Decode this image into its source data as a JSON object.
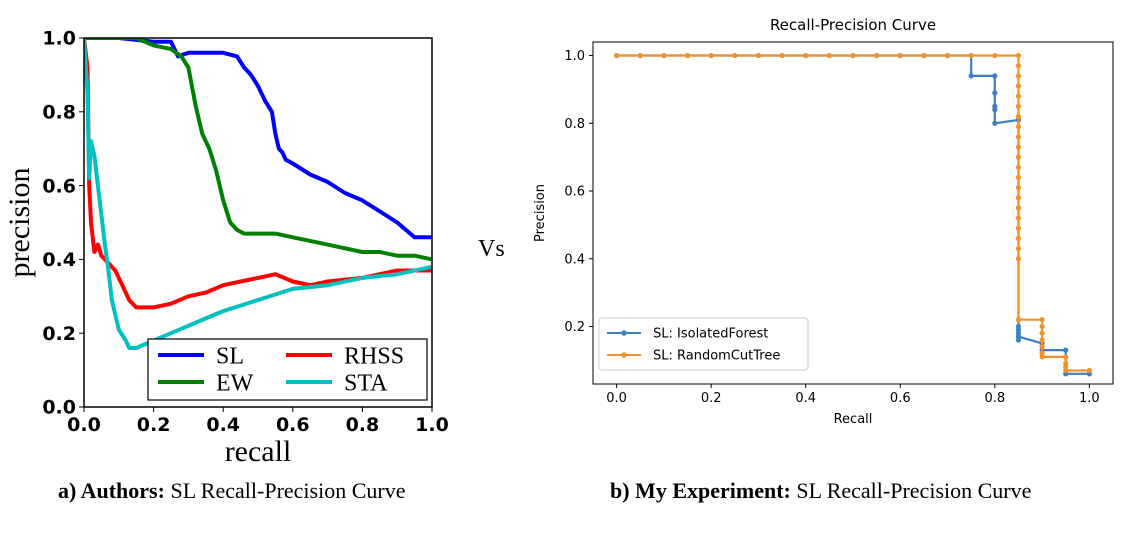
{
  "vs_label": "Vs",
  "captions": {
    "left": {
      "bold": "a) Authors:",
      "text": "SL Recall-Precision Curve"
    },
    "right": {
      "bold": "b) My Experiment:",
      "text": "SL Recall-Precision Curve"
    }
  },
  "chart_data": [
    {
      "type": "line",
      "title": "",
      "xlabel": "recall",
      "ylabel": "precision",
      "xlim": [
        0.0,
        1.0
      ],
      "ylim": [
        0.0,
        1.0
      ],
      "xticks": [
        "0.0",
        "0.2",
        "0.4",
        "0.6",
        "0.8",
        "1.0"
      ],
      "yticks": [
        "0.0",
        "0.2",
        "0.4",
        "0.6",
        "0.8",
        "1.0"
      ],
      "grid": false,
      "legend": "bottom-right",
      "series": [
        {
          "name": "SL",
          "color": "#0000ff",
          "x": [
            0.0,
            0.02,
            0.1,
            0.2,
            0.25,
            0.27,
            0.3,
            0.35,
            0.4,
            0.44,
            0.46,
            0.48,
            0.5,
            0.52,
            0.54,
            0.55,
            0.56,
            0.57,
            0.58,
            0.6,
            0.65,
            0.7,
            0.75,
            0.8,
            0.85,
            0.9,
            0.95,
            1.0
          ],
          "y": [
            1.0,
            1.0,
            1.0,
            0.99,
            0.99,
            0.95,
            0.96,
            0.96,
            0.96,
            0.95,
            0.92,
            0.9,
            0.87,
            0.83,
            0.8,
            0.74,
            0.7,
            0.69,
            0.67,
            0.66,
            0.63,
            0.61,
            0.58,
            0.56,
            0.53,
            0.5,
            0.46,
            0.46
          ]
        },
        {
          "name": "EW",
          "color": "#008000",
          "x": [
            0.0,
            0.02,
            0.1,
            0.15,
            0.2,
            0.25,
            0.28,
            0.3,
            0.31,
            0.32,
            0.33,
            0.34,
            0.36,
            0.38,
            0.4,
            0.42,
            0.44,
            0.46,
            0.5,
            0.55,
            0.6,
            0.65,
            0.7,
            0.75,
            0.8,
            0.85,
            0.9,
            0.95,
            1.0
          ],
          "y": [
            1.0,
            1.0,
            1.0,
            1.0,
            0.98,
            0.97,
            0.95,
            0.92,
            0.87,
            0.82,
            0.78,
            0.74,
            0.7,
            0.64,
            0.56,
            0.5,
            0.48,
            0.47,
            0.47,
            0.47,
            0.46,
            0.45,
            0.44,
            0.43,
            0.42,
            0.42,
            0.41,
            0.41,
            0.4
          ]
        },
        {
          "name": "RHSS",
          "color": "#ff0000",
          "x": [
            0.0,
            0.01,
            0.015,
            0.02,
            0.03,
            0.04,
            0.05,
            0.07,
            0.09,
            0.11,
            0.13,
            0.15,
            0.2,
            0.25,
            0.3,
            0.35,
            0.4,
            0.45,
            0.5,
            0.55,
            0.6,
            0.65,
            0.7,
            0.8,
            0.9,
            1.0
          ],
          "y": [
            1.0,
            0.92,
            0.6,
            0.5,
            0.42,
            0.44,
            0.41,
            0.39,
            0.37,
            0.33,
            0.29,
            0.27,
            0.27,
            0.28,
            0.3,
            0.31,
            0.33,
            0.34,
            0.35,
            0.36,
            0.34,
            0.33,
            0.34,
            0.35,
            0.37,
            0.37
          ]
        },
        {
          "name": "STA",
          "color": "#00c0c0",
          "x": [
            0.0,
            0.01,
            0.015,
            0.02,
            0.03,
            0.04,
            0.05,
            0.06,
            0.07,
            0.08,
            0.1,
            0.12,
            0.13,
            0.15,
            0.2,
            0.25,
            0.3,
            0.35,
            0.4,
            0.5,
            0.6,
            0.7,
            0.8,
            0.9,
            1.0
          ],
          "y": [
            1.0,
            0.85,
            0.62,
            0.72,
            0.68,
            0.6,
            0.52,
            0.44,
            0.37,
            0.29,
            0.21,
            0.18,
            0.16,
            0.16,
            0.18,
            0.2,
            0.22,
            0.24,
            0.26,
            0.29,
            0.32,
            0.33,
            0.35,
            0.36,
            0.38
          ]
        }
      ]
    },
    {
      "type": "line",
      "title": "Recall-Precision Curve",
      "xlabel": "Recall",
      "ylabel": "Precision",
      "xlim": [
        -0.05,
        1.05
      ],
      "ylim": [
        0.03,
        1.04
      ],
      "xticks": [
        "0.0",
        "0.2",
        "0.4",
        "0.6",
        "0.8",
        "1.0"
      ],
      "yticks": [
        "0.2",
        "0.4",
        "0.6",
        "0.8",
        "1.0"
      ],
      "grid": false,
      "legend": "bottom-left",
      "series": [
        {
          "name": "SL: IsolatedForest",
          "color": "#3f7fbf",
          "x": [
            0.0,
            0.05,
            0.1,
            0.15,
            0.2,
            0.25,
            0.3,
            0.35,
            0.4,
            0.45,
            0.5,
            0.55,
            0.6,
            0.65,
            0.7,
            0.75,
            0.75,
            0.8,
            0.8,
            0.8,
            0.8,
            0.8,
            0.85,
            0.85,
            0.85,
            0.85,
            0.85,
            0.85,
            0.85,
            0.9,
            0.9,
            0.95,
            0.95,
            1.0
          ],
          "y": [
            1.0,
            1.0,
            1.0,
            1.0,
            1.0,
            1.0,
            1.0,
            1.0,
            1.0,
            1.0,
            1.0,
            1.0,
            1.0,
            1.0,
            1.0,
            1.0,
            0.94,
            0.94,
            0.89,
            0.85,
            0.84,
            0.8,
            0.81,
            0.2,
            0.19,
            0.18,
            0.17,
            0.16,
            0.17,
            0.15,
            0.13,
            0.13,
            0.06,
            0.06
          ]
        },
        {
          "name": "SL: RandomCutTree",
          "color": "#f0932b",
          "x": [
            0.0,
            0.05,
            0.1,
            0.15,
            0.2,
            0.25,
            0.3,
            0.35,
            0.4,
            0.45,
            0.5,
            0.55,
            0.6,
            0.65,
            0.7,
            0.75,
            0.8,
            0.85,
            0.85,
            0.85,
            0.85,
            0.85,
            0.85,
            0.85,
            0.85,
            0.85,
            0.85,
            0.85,
            0.85,
            0.85,
            0.85,
            0.85,
            0.85,
            0.85,
            0.85,
            0.85,
            0.85,
            0.85,
            0.85,
            0.85,
            0.9,
            0.9,
            0.9,
            0.9,
            0.9,
            0.9,
            0.9,
            0.95,
            0.95,
            0.95,
            0.95,
            1.0
          ],
          "y": [
            1.0,
            1.0,
            1.0,
            1.0,
            1.0,
            1.0,
            1.0,
            1.0,
            1.0,
            1.0,
            1.0,
            1.0,
            1.0,
            1.0,
            1.0,
            1.0,
            1.0,
            1.0,
            0.97,
            0.94,
            0.91,
            0.88,
            0.85,
            0.82,
            0.79,
            0.76,
            0.73,
            0.7,
            0.67,
            0.64,
            0.61,
            0.58,
            0.55,
            0.52,
            0.49,
            0.46,
            0.43,
            0.4,
            0.22,
            0.22,
            0.22,
            0.2,
            0.18,
            0.16,
            0.14,
            0.12,
            0.11,
            0.11,
            0.09,
            0.08,
            0.07,
            0.07
          ]
        }
      ]
    }
  ]
}
